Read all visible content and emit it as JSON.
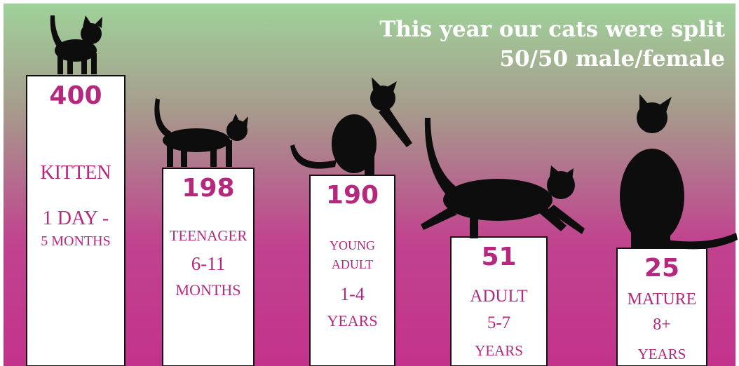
{
  "title": [
    "This year our cats were split",
    "50/50 male/female"
  ],
  "columns": [
    {
      "count": 400,
      "lines": [
        "KITTEN",
        "1 DAY -",
        "5 MONTHS"
      ]
    },
    {
      "count": 198,
      "lines": [
        "TEENAGER",
        "6-11",
        "MONTHS"
      ]
    },
    {
      "count": 190,
      "lines": [
        "YOUNG",
        "ADULT",
        "1-4",
        "YEARS"
      ]
    },
    {
      "count": 51,
      "lines": [
        "ADULT",
        "5-7",
        "YEARS"
      ]
    },
    {
      "count": 25,
      "lines": [
        "MATURE",
        "8+",
        "YEARS"
      ]
    }
  ]
}
